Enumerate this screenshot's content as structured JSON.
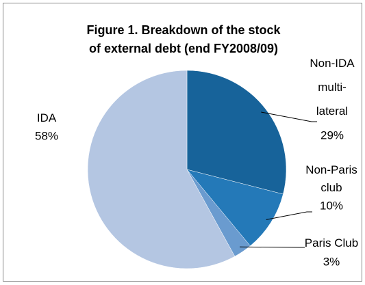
{
  "chart_data": {
    "type": "pie",
    "title": "Figure 1. Breakdown of the stock of external debt (end FY2008/09)",
    "categories": [
      "Non-IDA multi-lateral",
      "Non-Paris club",
      "Paris Club",
      "IDA"
    ],
    "values": [
      29,
      10,
      3,
      58
    ],
    "value_labels": [
      "29%",
      "10%",
      "3%",
      "58%"
    ],
    "colors": [
      "#17639a",
      "#2479b8",
      "#6a9bcf",
      "#b4c6e2"
    ]
  }
}
